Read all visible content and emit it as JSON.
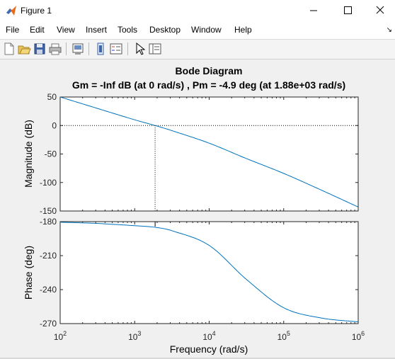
{
  "window": {
    "title": "Figure 1"
  },
  "menu": [
    "File",
    "Edit",
    "View",
    "Insert",
    "Tools",
    "Desktop",
    "Window",
    "Help"
  ],
  "toolbar_icons": [
    "new-figure-icon",
    "open-file-icon",
    "save-icon",
    "print-icon",
    "print-preview-icon",
    "link-plot-icon",
    "insert-legend-icon",
    "pointer-icon",
    "property-editor-icon"
  ],
  "plot": {
    "title": "Bode Diagram",
    "subtitle": "Gm = -Inf dB (at 0 rad/s) ,  Pm = -4.9 deg (at 1.88e+03 rad/s)",
    "xlabel": "Frequency  (rad/s)",
    "mag_ylabel": "Magnitude (dB)",
    "phase_ylabel": "Phase (deg)",
    "mag_ticks": [
      "50",
      "0",
      "-50",
      "-100",
      "-150"
    ],
    "phase_ticks": [
      "-180",
      "-210",
      "-240",
      "-270"
    ],
    "x_ticks": [
      {
        "base": "10",
        "exp": "2"
      },
      {
        "base": "10",
        "exp": "3"
      },
      {
        "base": "10",
        "exp": "4"
      },
      {
        "base": "10",
        "exp": "5"
      },
      {
        "base": "10",
        "exp": "6"
      }
    ]
  },
  "chart_data": {
    "type": "line",
    "title": "Bode Diagram",
    "subtitle": "Gm = -Inf dB (at 0 rad/s) ,  Pm = -4.9 deg (at 1.88e+03 rad/s)",
    "xlabel": "Frequency  (rad/s)",
    "xscale": "log",
    "xlim": [
      100,
      1000000
    ],
    "crossover_frequency": 1880,
    "magnitude": {
      "ylabel": "Magnitude (dB)",
      "ylim": [
        -150,
        50
      ],
      "x": [
        100,
        316,
        1000,
        1880,
        3160,
        10000,
        31600,
        100000,
        316000,
        1000000
      ],
      "y": [
        50,
        30,
        10,
        0,
        -9,
        -31,
        -58,
        -84,
        -113,
        -143
      ]
    },
    "phase": {
      "ylabel": "Phase (deg)",
      "ylim": [
        -270,
        -180
      ],
      "x": [
        100,
        316,
        1000,
        1880,
        3160,
        10000,
        31600,
        100000,
        316000,
        1000000
      ],
      "y": [
        -180.5,
        -181.6,
        -183.6,
        -185,
        -188,
        -201,
        -231,
        -256,
        -265,
        -268.5
      ]
    },
    "grid": false,
    "colors": {
      "line": "#0072bd"
    }
  }
}
